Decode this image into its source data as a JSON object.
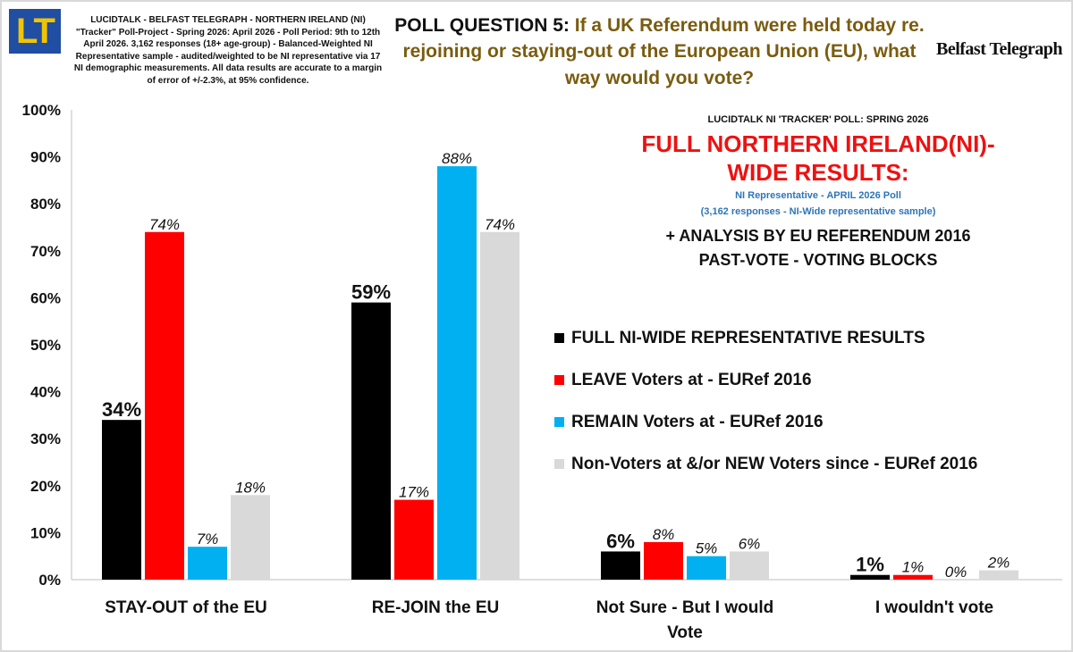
{
  "header": {
    "logo_text": "LT",
    "meta_text": "LUCIDTALK - BELFAST TELEGRAPH - NORTHERN IRELAND (NI) \"Tracker\" Poll-Project - Spring 2026: April 2026 - Poll Period: 9th to 12th April 2026. 3,162 responses (18+ age-group) - Balanced-Weighted NI Representative sample - audited/weighted to be NI representative via 17 NI demographic measurements. All data results are accurate to a margin of error of +/-2.3%, at 95% confidence.",
    "question_label": "POLL QUESTION 5:",
    "question_text": "If a UK Referendum were held today re. rejoining or staying-out of the European Union (EU), what way would you vote?",
    "masthead": "Belfast Telegraph"
  },
  "info": {
    "poll_name": "LUCIDTALK NI 'TRACKER' POLL: SPRING 2026",
    "headline_1": "FULL NORTHERN IRELAND(NI)-",
    "headline_2": "WIDE RESULTS:",
    "rep_line_1": "NI Representative - APRIL 2026 Poll",
    "rep_line_2": "(3,162 responses - NI-Wide representative sample)",
    "analysis_1": "+ ANALYSIS BY EU REFERENDUM 2016",
    "analysis_2": "PAST-VOTE - VOTING BLOCKS"
  },
  "chart_data": {
    "type": "bar",
    "categories": [
      "STAY-OUT of the EU",
      "RE-JOIN the EU",
      "Not Sure - But I would Vote",
      "I wouldn't vote"
    ],
    "series": [
      {
        "name": "FULL NI-WIDE REPRESENTATIVE RESULTS",
        "values": [
          34,
          59,
          6,
          1
        ],
        "color": "#000000"
      },
      {
        "name": "LEAVE Voters at - EURef 2016",
        "values": [
          74,
          17,
          8,
          1
        ],
        "color": "#ff0000"
      },
      {
        "name": "REMAIN Voters at - EURef 2016",
        "values": [
          7,
          88,
          5,
          0
        ],
        "color": "#00b0f0"
      },
      {
        "name": "Non-Voters at &/or NEW Voters since - EURef 2016",
        "values": [
          18,
          74,
          6,
          2
        ],
        "color": "#d9d9d9"
      }
    ],
    "yticks": [
      "0%",
      "10%",
      "20%",
      "30%",
      "40%",
      "50%",
      "60%",
      "70%",
      "80%",
      "90%",
      "100%"
    ],
    "ylim": [
      0,
      100
    ],
    "value_suffix": "%",
    "grid": false,
    "legend_position": "right"
  }
}
